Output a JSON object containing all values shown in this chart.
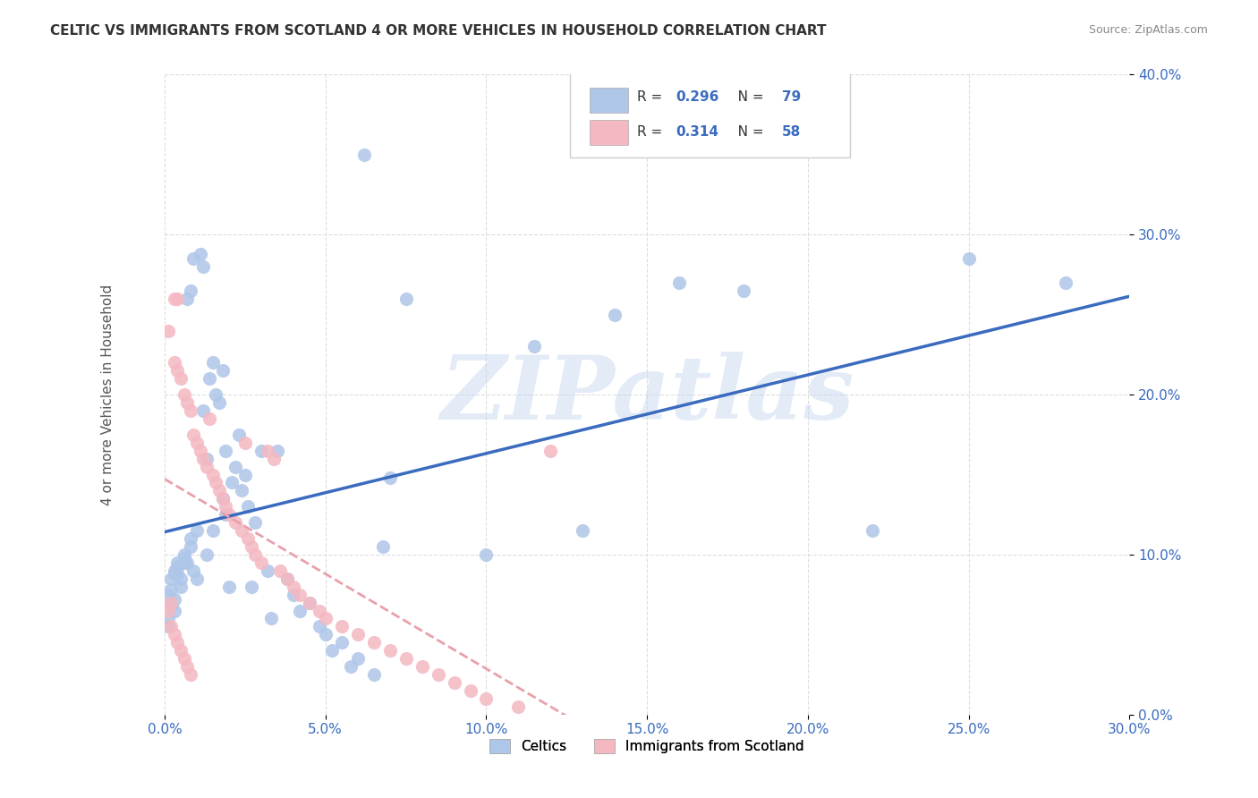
{
  "title": "CELTIC VS IMMIGRANTS FROM SCOTLAND 4 OR MORE VEHICLES IN HOUSEHOLD CORRELATION CHART",
  "source": "Source: ZipAtlas.com",
  "xlabel": "",
  "ylabel": "4 or more Vehicles in Household",
  "xlim": [
    0.0,
    0.3
  ],
  "ylim": [
    0.0,
    0.4
  ],
  "xticks": [
    0.0,
    0.05,
    0.1,
    0.15,
    0.2,
    0.25,
    0.3
  ],
  "yticks": [
    0.0,
    0.1,
    0.2,
    0.3,
    0.4
  ],
  "xtick_labels": [
    "0.0%",
    "5.0%",
    "10.0%",
    "15.0%",
    "20.0%",
    "25.0%",
    "30.0%"
  ],
  "ytick_labels": [
    "0.0%",
    "10.0%",
    "20.0%",
    "30.0%",
    "40.0%"
  ],
  "celtics_color": "#aec6e8",
  "immigrants_color": "#f4b8c1",
  "celtics_line_color": "#3a6bbf",
  "immigrants_line_color": "#e8a0aa",
  "R_celtics": 0.296,
  "N_celtics": 79,
  "R_immigrants": 0.314,
  "N_immigrants": 58,
  "watermark": "ZIPatlas",
  "watermark_color": "#c8d8f0",
  "background_color": "#ffffff",
  "grid_color": "#dddddd",
  "celtics_x": [
    0.002,
    0.003,
    0.001,
    0.004,
    0.005,
    0.002,
    0.003,
    0.001,
    0.006,
    0.007,
    0.008,
    0.003,
    0.004,
    0.002,
    0.001,
    0.005,
    0.006,
    0.003,
    0.002,
    0.008,
    0.01,
    0.012,
    0.009,
    0.011,
    0.007,
    0.008,
    0.013,
    0.006,
    0.009,
    0.004,
    0.015,
    0.018,
    0.014,
    0.016,
    0.012,
    0.01,
    0.02,
    0.017,
    0.013,
    0.019,
    0.022,
    0.025,
    0.021,
    0.024,
    0.018,
    0.023,
    0.026,
    0.019,
    0.028,
    0.015,
    0.03,
    0.035,
    0.032,
    0.038,
    0.027,
    0.04,
    0.045,
    0.042,
    0.033,
    0.048,
    0.05,
    0.055,
    0.052,
    0.06,
    0.058,
    0.065,
    0.062,
    0.07,
    0.075,
    0.068,
    0.1,
    0.115,
    0.13,
    0.14,
    0.16,
    0.18,
    0.22,
    0.25,
    0.28
  ],
  "celtics_y": [
    0.085,
    0.09,
    0.075,
    0.095,
    0.08,
    0.07,
    0.065,
    0.06,
    0.1,
    0.095,
    0.105,
    0.088,
    0.092,
    0.078,
    0.055,
    0.085,
    0.098,
    0.072,
    0.068,
    0.11,
    0.115,
    0.28,
    0.285,
    0.288,
    0.26,
    0.265,
    0.1,
    0.095,
    0.09,
    0.088,
    0.22,
    0.215,
    0.21,
    0.2,
    0.19,
    0.085,
    0.08,
    0.195,
    0.16,
    0.165,
    0.155,
    0.15,
    0.145,
    0.14,
    0.135,
    0.175,
    0.13,
    0.125,
    0.12,
    0.115,
    0.165,
    0.165,
    0.09,
    0.085,
    0.08,
    0.075,
    0.07,
    0.065,
    0.06,
    0.055,
    0.05,
    0.045,
    0.04,
    0.035,
    0.03,
    0.025,
    0.35,
    0.148,
    0.26,
    0.105,
    0.1,
    0.23,
    0.115,
    0.25,
    0.27,
    0.265,
    0.115,
    0.285,
    0.27
  ],
  "immigrants_x": [
    0.001,
    0.002,
    0.003,
    0.004,
    0.001,
    0.002,
    0.003,
    0.004,
    0.005,
    0.006,
    0.007,
    0.008,
    0.003,
    0.004,
    0.005,
    0.006,
    0.007,
    0.008,
    0.009,
    0.01,
    0.011,
    0.012,
    0.013,
    0.014,
    0.015,
    0.016,
    0.017,
    0.018,
    0.019,
    0.02,
    0.022,
    0.024,
    0.025,
    0.026,
    0.027,
    0.028,
    0.03,
    0.032,
    0.034,
    0.036,
    0.038,
    0.04,
    0.042,
    0.045,
    0.048,
    0.05,
    0.055,
    0.06,
    0.065,
    0.07,
    0.075,
    0.08,
    0.085,
    0.09,
    0.095,
    0.1,
    0.11,
    0.12
  ],
  "immigrants_y": [
    0.065,
    0.07,
    0.26,
    0.26,
    0.24,
    0.055,
    0.05,
    0.045,
    0.04,
    0.035,
    0.03,
    0.025,
    0.22,
    0.215,
    0.21,
    0.2,
    0.195,
    0.19,
    0.175,
    0.17,
    0.165,
    0.16,
    0.155,
    0.185,
    0.15,
    0.145,
    0.14,
    0.135,
    0.13,
    0.125,
    0.12,
    0.115,
    0.17,
    0.11,
    0.105,
    0.1,
    0.095,
    0.165,
    0.16,
    0.09,
    0.085,
    0.08,
    0.075,
    0.07,
    0.065,
    0.06,
    0.055,
    0.05,
    0.045,
    0.04,
    0.035,
    0.03,
    0.025,
    0.02,
    0.015,
    0.01,
    0.005,
    0.165
  ]
}
